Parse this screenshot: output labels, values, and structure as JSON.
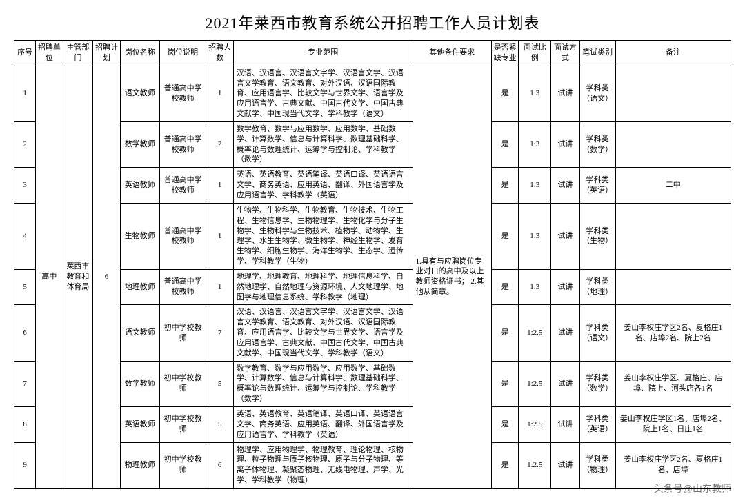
{
  "title": "2021年莱西市教育系统公开招聘工作人员计划表",
  "watermark": "头条号@山东教师",
  "headers": {
    "c1": "序号",
    "c2": "招聘单位",
    "c3": "主管部门",
    "c4": "招聘计划",
    "c5": "岗位名称",
    "c6": "岗位说明",
    "c7": "招聘人数",
    "c8": "专业范围",
    "c9": "其他条件要求",
    "c10": "是否紧缺专业",
    "c11": "面试比例",
    "c12": "面试方式",
    "c13": "笔试类别",
    "c14": "备注"
  },
  "col_widths_pct": [
    3.0,
    3.8,
    4.2,
    3.8,
    5.5,
    6.5,
    3.8,
    25.0,
    11.0,
    3.8,
    4.5,
    4.0,
    5.0,
    16.1
  ],
  "merged": {
    "unit": "高中",
    "dept": "莱西市教育和体育局",
    "plan": "6",
    "other_req": "1.具有与应聘岗位专业对口的高中及以上教师资格证书；\n2.其他从简章。"
  },
  "rows": [
    {
      "no": "1",
      "post": "语文教师",
      "desc": "普通高中学校教师",
      "num": "1",
      "major": "汉语、汉语言、汉语言文字学、汉语言文学、汉语言文学教育、语文教育、对外汉语、汉语国际教育、应用语言学、比较文学与世界文学、语言学及应用语言学、古典文献、中国古代文学、中国古典文献学、中国现当代文学、学科教学（语文）",
      "short": "是",
      "ratio": "1:3",
      "method": "试讲",
      "type": "学科类（语文）",
      "note": ""
    },
    {
      "no": "2",
      "post": "数学教师",
      "desc": "普通高中学校教师",
      "num": "2",
      "major": "数学教育、数学与应用数学、应用数学、基础数学、计算数学、信息与计算科学、数理基础科学、概率论与数理统计、运筹学与控制论、学科教学（数学）",
      "short": "是",
      "ratio": "1:3",
      "method": "试讲",
      "type": "学科类（数学）",
      "note": ""
    },
    {
      "no": "3",
      "post": "英语教师",
      "desc": "普通高中学校教师",
      "num": "1",
      "major": "英语、英语教育、英语笔译、英语口译、英语语言文学、商务英语、应用英语、翻译、外国语言学及应用语言学、学科教学（英语）",
      "short": "是",
      "ratio": "1:3",
      "method": "试讲",
      "type": "学科类（英语）",
      "note": "二中"
    },
    {
      "no": "4",
      "post": "生物教师",
      "desc": "普通高中学校教师",
      "num": "1",
      "major": "生物学、生物科学、生物教育、生物技术、生物工程、生物信息学、生物物理学、生物化学与分子生物学、生物科学与生物技术、植物学、动物学、生理学、水生生物学、微生物学、神经生物学、发育生物学、细胞生物学、海洋生物学、生态学、遗传学、学科教学（生物）",
      "short": "是",
      "ratio": "1:3",
      "method": "试讲",
      "type": "学科类（生物）",
      "note": ""
    },
    {
      "no": "5",
      "post": "地理教师",
      "desc": "普通高中学校教师",
      "num": "1",
      "major": "地理学、地理教育、地理科学、地理信息科学、自然地理学、自然地理与资源环境、人文地理学、地图学与地理信息系统、学科教学（地理）",
      "short": "是",
      "ratio": "1:3",
      "method": "试讲",
      "type": "学科类（地理）",
      "note": ""
    },
    {
      "no": "6",
      "post": "语文教师",
      "desc": "初中学校教师",
      "num": "7",
      "major": "汉语、汉语言、汉语言文字学、汉语言文学、汉语言文学教育、语文教育、对外汉语、汉语国际教育、应用语言学、比较文学与世界文学、语言学及应用语言学、古典文献、中国古代文学、中国古典文献学、中国现当代文学、学科教学（语文）",
      "short": "是",
      "ratio": "1:2.5",
      "method": "试讲",
      "type": "学科类（语文）",
      "note": "姜山李权庄学区2名、夏格庄1名、店埠2名、院上2名"
    },
    {
      "no": "7",
      "post": "数学教师",
      "desc": "初中学校教师",
      "num": "5",
      "major": "数学教育、数学与应用数学、应用数学、基础数学、计算数学、信息与计算科学、数理基础科学、概率论与数理统计、运筹学与控制论、学科教学（数学）",
      "short": "是",
      "ratio": "1:2.5",
      "method": "试讲",
      "type": "学科类（数学）",
      "note": "姜山李权庄学区、夏格庄、店埠、院上、河头店各1名"
    },
    {
      "no": "8",
      "post": "英语教师",
      "desc": "初中学校教师",
      "num": "5",
      "major": "英语、英语教育、英语笔译、英语口译、英语语言文学、商务英语、应用英语、翻译、外国语言学及应用语言学、学科教学（英语）",
      "short": "是",
      "ratio": "1:2.5",
      "method": "试讲",
      "type": "学科类（英语）",
      "note": "姜山李权庄学区1名、店埠2名、院上1名、日庄1名"
    },
    {
      "no": "9",
      "post": "物理教师",
      "desc": "初中学校教师",
      "num": "6",
      "major": "物理学、应用物理学、物理教育、理论物理、核物理、粒子物理与原子核物理、原子与分子物理、等离子体物理、凝聚态物理、无线电物理、声学、光学、学科教学（物理）",
      "short": "是",
      "ratio": "1:2.5",
      "method": "试讲",
      "type": "学科类（物理）",
      "note": "姜山李权庄学区2名、夏格庄1名、店埠"
    }
  ]
}
